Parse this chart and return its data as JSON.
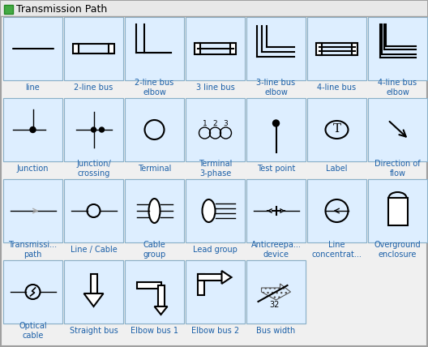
{
  "title": "Transmission Path",
  "title_fontsize": 9,
  "label_fontsize": 7,
  "label_color": "#1a5fa8",
  "outer_bg": "#f0f0f0",
  "title_bar_color": "#e8e8e8",
  "cell_bg": "#ddeeff",
  "cell_border": "#8ab0c8",
  "icon_color": "#44aa44",
  "icon_border": "#228822",
  "labels": [
    [
      "line",
      "2-line bus",
      "2-line bus\nelbow",
      "3 line bus",
      "3-line bus\nelbow",
      "4-line bus",
      "4-line bus\nelbow"
    ],
    [
      "Junction",
      "Junction/\ncrossing",
      "Terminal",
      "Terminal\n3-phase",
      "Test point",
      "Label",
      "Direction of\nflow"
    ],
    [
      "Transmissi...\npath",
      "Line / Cable",
      "Cable\ngroup",
      "Lead group",
      "Anticreepa...\ndevice",
      "Line\nconcentrat...",
      "Overground\nenclosure"
    ],
    [
      "Optical\ncable",
      "Straight bus",
      "Elbow bus 1",
      "Elbow bus 2",
      "Bus width",
      null,
      null
    ]
  ]
}
